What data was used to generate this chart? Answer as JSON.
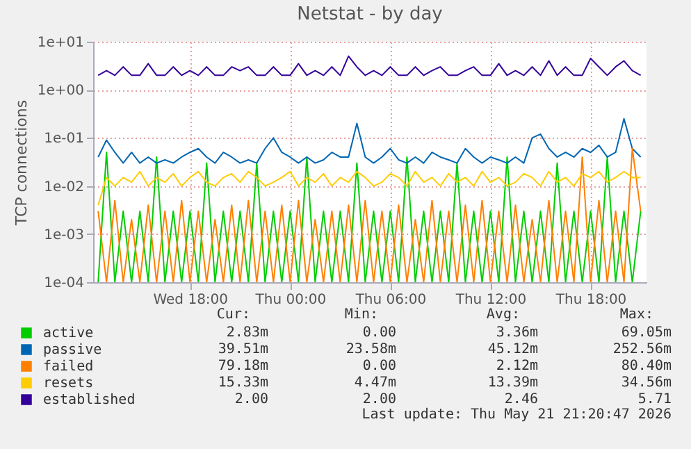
{
  "chart_data": {
    "type": "line",
    "title": "Netstat - by day",
    "ylabel": "TCP connections",
    "log": "y",
    "grid": true,
    "legend": "bottom left",
    "line_style": "solid",
    "marker": "none",
    "xlim": [
      "2026-05-20T12:12",
      "2026-05-21T21:21"
    ],
    "xticks": [
      {
        "value": "2026-05-20T18:00",
        "label": "Wed 18:00"
      },
      {
        "value": "2026-05-21T00:00",
        "label": "Thu 00:00"
      },
      {
        "value": "2026-05-21T06:00",
        "label": "Thu 06:00"
      },
      {
        "value": "2026-05-21T12:00",
        "label": "Thu 12:00"
      },
      {
        "value": "2026-05-21T18:00",
        "label": "Thu 18:00"
      }
    ],
    "ylim": [
      0.0001,
      10
    ],
    "yticks": [
      {
        "value": 0.0001,
        "label": "1e-04"
      },
      {
        "value": 0.001,
        "label": "1e-03"
      },
      {
        "value": 0.01,
        "label": "1e-02"
      },
      {
        "value": 0.1,
        "label": "1e-01"
      },
      {
        "value": 1,
        "label": "1e+00"
      },
      {
        "value": 10,
        "label": "1e+01"
      }
    ],
    "x": [
      "2026-05-20T12:30",
      "2026-05-20T13:00",
      "2026-05-20T13:30",
      "2026-05-20T14:00",
      "2026-05-20T14:30",
      "2026-05-20T15:00",
      "2026-05-20T15:30",
      "2026-05-20T16:00",
      "2026-05-20T16:30",
      "2026-05-20T17:00",
      "2026-05-20T17:30",
      "2026-05-20T18:00",
      "2026-05-20T18:30",
      "2026-05-20T19:00",
      "2026-05-20T19:30",
      "2026-05-20T20:00",
      "2026-05-20T20:30",
      "2026-05-20T21:00",
      "2026-05-20T21:30",
      "2026-05-20T22:00",
      "2026-05-20T22:30",
      "2026-05-20T23:00",
      "2026-05-20T23:30",
      "2026-05-21T00:00",
      "2026-05-21T00:30",
      "2026-05-21T01:00",
      "2026-05-21T01:30",
      "2026-05-21T02:00",
      "2026-05-21T02:30",
      "2026-05-21T03:00",
      "2026-05-21T03:30",
      "2026-05-21T04:00",
      "2026-05-21T04:30",
      "2026-05-21T05:00",
      "2026-05-21T05:30",
      "2026-05-21T06:00",
      "2026-05-21T06:30",
      "2026-05-21T07:00",
      "2026-05-21T07:30",
      "2026-05-21T08:00",
      "2026-05-21T08:30",
      "2026-05-21T09:00",
      "2026-05-21T09:30",
      "2026-05-21T10:00",
      "2026-05-21T10:30",
      "2026-05-21T11:00",
      "2026-05-21T11:30",
      "2026-05-21T12:00",
      "2026-05-21T12:30",
      "2026-05-21T13:00",
      "2026-05-21T13:30",
      "2026-05-21T14:00",
      "2026-05-21T14:30",
      "2026-05-21T15:00",
      "2026-05-21T15:30",
      "2026-05-21T16:00",
      "2026-05-21T16:30",
      "2026-05-21T17:00",
      "2026-05-21T17:30",
      "2026-05-21T18:00",
      "2026-05-21T18:30",
      "2026-05-21T19:00",
      "2026-05-21T19:30",
      "2026-05-21T20:00",
      "2026-05-21T20:30",
      "2026-05-21T21:00"
    ],
    "series": [
      {
        "name": "active",
        "color": "#00cc00",
        "values": [
          0.0001,
          0.05,
          0.0001,
          0.003,
          0.0001,
          0.003,
          0.0001,
          0.04,
          0.0001,
          0.003,
          0.0001,
          0.003,
          0.0001,
          0.03,
          0.0001,
          0.003,
          0.0001,
          0.003,
          0.0001,
          0.03,
          0.0001,
          0.003,
          0.0001,
          0.003,
          0.0001,
          0.04,
          0.0001,
          0.003,
          0.0001,
          0.003,
          0.0001,
          0.03,
          0.0001,
          0.003,
          0.0001,
          0.003,
          0.0001,
          0.04,
          0.0001,
          0.003,
          0.0001,
          0.003,
          0.0001,
          0.03,
          0.0001,
          0.003,
          0.0001,
          0.003,
          0.0001,
          0.04,
          0.0001,
          0.003,
          0.0001,
          0.003,
          0.0001,
          0.03,
          0.0001,
          0.003,
          0.0001,
          0.003,
          0.0001,
          0.04,
          0.0001,
          0.003,
          0.0001,
          0.003
        ]
      },
      {
        "name": "passive",
        "color": "#0066b3",
        "values": [
          0.04,
          0.09,
          0.05,
          0.03,
          0.05,
          0.03,
          0.04,
          0.03,
          0.035,
          0.03,
          0.04,
          0.05,
          0.06,
          0.04,
          0.03,
          0.05,
          0.04,
          0.03,
          0.035,
          0.03,
          0.06,
          0.1,
          0.05,
          0.04,
          0.03,
          0.04,
          0.03,
          0.035,
          0.05,
          0.04,
          0.04,
          0.2,
          0.04,
          0.03,
          0.04,
          0.06,
          0.035,
          0.03,
          0.04,
          0.03,
          0.05,
          0.04,
          0.035,
          0.03,
          0.06,
          0.04,
          0.03,
          0.04,
          0.035,
          0.03,
          0.04,
          0.03,
          0.1,
          0.12,
          0.06,
          0.04,
          0.05,
          0.04,
          0.06,
          0.05,
          0.07,
          0.04,
          0.05,
          0.25,
          0.06,
          0.04
        ]
      },
      {
        "name": "failed",
        "color": "#ff8000",
        "values": [
          0.003,
          0.0001,
          0.005,
          0.0001,
          0.002,
          0.0001,
          0.004,
          0.0001,
          0.003,
          0.0001,
          0.005,
          0.0001,
          0.003,
          0.0001,
          0.002,
          0.0001,
          0.004,
          0.0001,
          0.005,
          0.0001,
          0.003,
          0.0001,
          0.004,
          0.0001,
          0.005,
          0.0001,
          0.002,
          0.0001,
          0.003,
          0.0001,
          0.004,
          0.0001,
          0.005,
          0.0001,
          0.003,
          0.0001,
          0.004,
          0.0001,
          0.002,
          0.0001,
          0.005,
          0.0001,
          0.003,
          0.0001,
          0.004,
          0.0001,
          0.005,
          0.0001,
          0.003,
          0.0001,
          0.004,
          0.0001,
          0.002,
          0.0001,
          0.005,
          0.0001,
          0.003,
          0.0001,
          0.04,
          0.0001,
          0.005,
          0.0001,
          0.003,
          0.0001,
          0.06,
          0.003
        ]
      },
      {
        "name": "resets",
        "color": "#ffcc00",
        "values": [
          0.004,
          0.015,
          0.01,
          0.015,
          0.012,
          0.02,
          0.01,
          0.015,
          0.012,
          0.018,
          0.01,
          0.015,
          0.02,
          0.012,
          0.01,
          0.015,
          0.018,
          0.012,
          0.02,
          0.015,
          0.01,
          0.012,
          0.015,
          0.02,
          0.01,
          0.015,
          0.012,
          0.018,
          0.01,
          0.015,
          0.012,
          0.02,
          0.015,
          0.01,
          0.012,
          0.018,
          0.015,
          0.01,
          0.02,
          0.012,
          0.015,
          0.01,
          0.018,
          0.012,
          0.015,
          0.01,
          0.02,
          0.012,
          0.015,
          0.01,
          0.012,
          0.018,
          0.015,
          0.01,
          0.02,
          0.012,
          0.015,
          0.01,
          0.018,
          0.015,
          0.02,
          0.012,
          0.015,
          0.02,
          0.015,
          0.015
        ]
      },
      {
        "name": "established",
        "color": "#330099",
        "values": [
          2,
          2.5,
          2,
          3,
          2,
          2,
          3.5,
          2,
          2,
          3,
          2,
          2.5,
          2,
          3,
          2,
          2,
          3,
          2.5,
          3,
          2,
          2,
          3,
          2,
          2,
          3.5,
          2,
          2.5,
          2,
          3,
          2,
          5,
          3,
          2,
          2.5,
          2,
          3,
          2,
          2,
          3,
          2,
          2.5,
          3,
          2,
          2,
          2.5,
          3,
          2,
          2,
          3.5,
          2,
          2.5,
          2,
          3,
          2,
          4,
          2,
          3,
          2,
          2,
          4.5,
          3,
          2,
          3,
          4,
          2.5,
          2
        ]
      }
    ],
    "annotations": [
      "Cur:",
      "Min:",
      "Avg:",
      "Max:",
      "2.83m",
      "0.00",
      "3.36m",
      "69.05m",
      "39.51m",
      "23.58m",
      "45.12m",
      "252.56m",
      "79.18m",
      "0.00",
      "2.12m",
      "80.40m",
      "15.33m",
      "4.47m",
      "13.39m",
      "34.56m",
      "2.00",
      "2.00",
      "2.46",
      "5.71",
      "Last update: Thu May 21 21:20:47 2026"
    ]
  }
}
